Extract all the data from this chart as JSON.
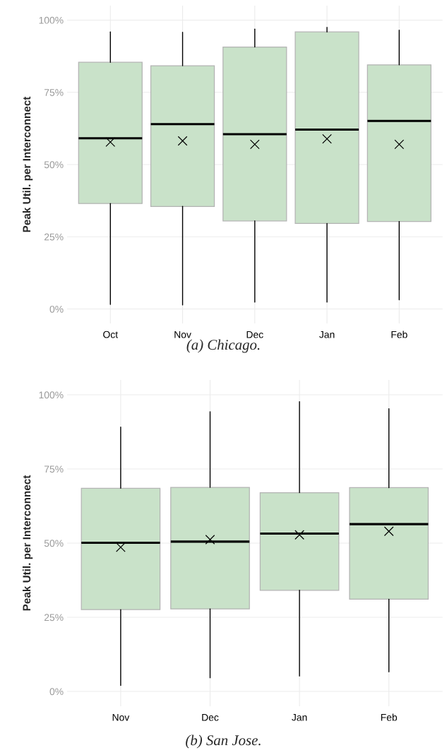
{
  "chart_data": [
    {
      "type": "box",
      "title": "(a) Chicago.",
      "ylabel": "Peak Util. per Interconnect",
      "categories": [
        "Oct",
        "Nov",
        "Dec",
        "Jan",
        "Feb"
      ],
      "color": "#c9e2c9",
      "boxes": [
        {
          "low": 1.6,
          "q1": 36.5,
          "median": 59.1,
          "q3": 85.4,
          "high": 95.9,
          "mean": 57.8
        },
        {
          "low": 1.4,
          "q1": 35.5,
          "median": 64.0,
          "q3": 84.2,
          "high": 95.8,
          "mean": 58.2
        },
        {
          "low": 2.4,
          "q1": 30.5,
          "median": 60.5,
          "q3": 90.7,
          "high": 96.9,
          "mean": 57.0
        },
        {
          "low": 2.4,
          "q1": 29.6,
          "median": 62.1,
          "q3": 95.9,
          "high": 97.5,
          "mean": 58.9
        },
        {
          "low": 3.2,
          "q1": 30.3,
          "median": 65.1,
          "q3": 84.5,
          "high": 96.5,
          "mean": 57.0
        }
      ],
      "ylim": [
        -5,
        105
      ],
      "yticks": [
        {
          "value": 0,
          "label": "0%"
        },
        {
          "value": 25,
          "label": "25%"
        },
        {
          "value": 50,
          "label": "50%"
        },
        {
          "value": 75,
          "label": "75%"
        },
        {
          "value": 100,
          "label": "100%"
        }
      ],
      "grid": true,
      "marker": "cross"
    },
    {
      "type": "box",
      "title": "(b) San Jose.",
      "ylabel": "Peak Util. per Interconnect",
      "categories": [
        "Nov",
        "Dec",
        "Jan",
        "Feb"
      ],
      "color": "#c9e2c9",
      "boxes": [
        {
          "low": 2.0,
          "q1": 27.6,
          "median": 50.1,
          "q3": 68.5,
          "high": 89.1,
          "mean": 48.6
        },
        {
          "low": 4.6,
          "q1": 27.8,
          "median": 50.5,
          "q3": 68.8,
          "high": 94.3,
          "mean": 51.2
        },
        {
          "low": 5.2,
          "q1": 34.1,
          "median": 53.2,
          "q3": 67.0,
          "high": 97.7,
          "mean": 52.8
        },
        {
          "low": 6.6,
          "q1": 31.1,
          "median": 56.4,
          "q3": 68.7,
          "high": 95.3,
          "mean": 54.0
        }
      ],
      "ylim": [
        -5,
        105
      ],
      "yticks": [
        {
          "value": 0,
          "label": "0%"
        },
        {
          "value": 25,
          "label": "25%"
        },
        {
          "value": 50,
          "label": "50%"
        },
        {
          "value": 75,
          "label": "75%"
        },
        {
          "value": 100,
          "label": "100%"
        }
      ],
      "grid": true,
      "marker": "cross"
    }
  ]
}
